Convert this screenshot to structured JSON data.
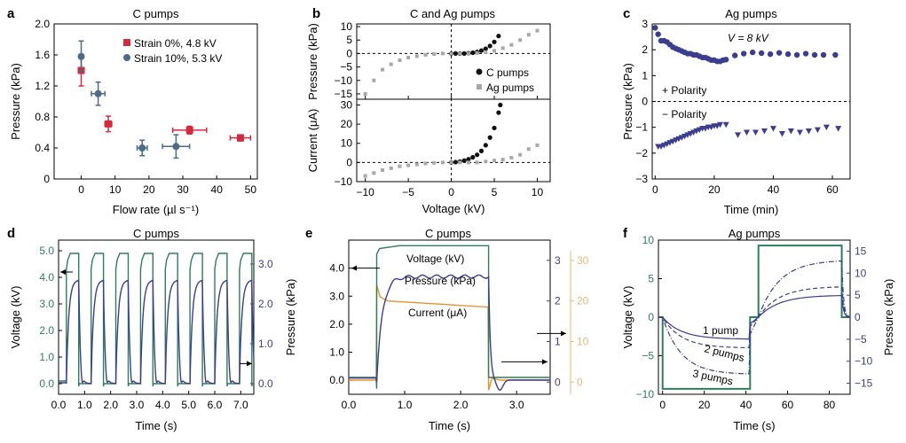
{
  "colors": {
    "red": "#d42b3c",
    "slate": "#4d6a87",
    "black": "#111111",
    "grey": "#a8a8a8",
    "navy": "#3b3d8e",
    "green": "#2f7d5c",
    "orange": "#e8912c",
    "tan": "#e3b77a"
  },
  "chart_data": [
    {
      "id": "a",
      "panel_label": "a",
      "type": "scatter",
      "title": "C pumps",
      "xlabel": "Flow rate (µl s⁻¹)",
      "ylabel": "Pressure (kPa)",
      "xlim": [
        -8,
        52
      ],
      "ylim": [
        0,
        2.0
      ],
      "xticks": [
        "0",
        "10",
        "20",
        "30",
        "40",
        "50"
      ],
      "yticks": [
        "0",
        "0.4",
        "0.8",
        "1.2",
        "1.6",
        "2.0"
      ],
      "legend_position": "top-right",
      "series": [
        {
          "name": "Strain 0%, 4.8 kV",
          "color_key": "red",
          "marker": "square",
          "points": [
            {
              "x": 0,
              "y": 1.4,
              "yerr": 0.2
            },
            {
              "x": 8,
              "y": 0.71,
              "xerr": 1,
              "yerr": 0.1
            },
            {
              "x": 32,
              "y": 0.63,
              "xerr": 5,
              "yerr": 0.05
            },
            {
              "x": 47,
              "y": 0.53,
              "xerr": 3,
              "yerr": 0.04
            }
          ]
        },
        {
          "name": "Strain 10%, 5.3 kV",
          "color_key": "slate",
          "marker": "circle",
          "points": [
            {
              "x": 0,
              "y": 1.58,
              "yerr": 0.2
            },
            {
              "x": 5,
              "y": 1.1,
              "xerr": 2,
              "yerr": 0.15
            },
            {
              "x": 18,
              "y": 0.4,
              "xerr": 1.5,
              "yerr": 0.1
            },
            {
              "x": 28,
              "y": 0.42,
              "xerr": 4,
              "yerr": 0.15
            }
          ]
        }
      ]
    },
    {
      "id": "b",
      "panel_label": "b",
      "type": "scatter",
      "title": "C and Ag pumps",
      "xlabel": "Voltage (kV)",
      "xlim": [
        -11,
        11.5
      ],
      "xticks": [
        "−10",
        "−5",
        "0",
        "5",
        "10"
      ],
      "top": {
        "ylabel": "Pressure (kPa)",
        "ylim": [
          -17,
          11
        ],
        "yticks": [
          "10",
          "5",
          "0",
          "−5",
          "−10",
          "−15"
        ]
      },
      "bottom": {
        "ylabel": "Current (μA)",
        "ylim": [
          -10,
          33
        ],
        "yticks": [
          "30",
          "20",
          "10",
          "0",
          "−10"
        ]
      },
      "legend_position": "right",
      "series": [
        {
          "name": "C pumps",
          "color_key": "black",
          "marker": "circle",
          "pressure": [
            [
              0,
              0
            ],
            [
              0.5,
              0
            ],
            [
              1,
              0
            ],
            [
              1.5,
              0
            ],
            [
              2,
              0.1
            ],
            [
              2.5,
              0.3
            ],
            [
              3,
              0.6
            ],
            [
              3.5,
              1.1
            ],
            [
              4,
              1.8
            ],
            [
              4.5,
              2.8
            ],
            [
              5,
              4.3
            ],
            [
              5.5,
              6.5
            ]
          ],
          "current": [
            [
              0,
              0
            ],
            [
              0.5,
              0.2
            ],
            [
              1,
              0.5
            ],
            [
              1.5,
              1
            ],
            [
              2,
              1.7
            ],
            [
              2.5,
              2.7
            ],
            [
              3,
              4
            ],
            [
              3.5,
              6
            ],
            [
              4,
              9
            ],
            [
              4.5,
              13
            ],
            [
              5,
              18
            ],
            [
              5.5,
              26
            ],
            [
              5.7,
              30
            ]
          ]
        },
        {
          "name": "Ag pumps",
          "color_key": "grey",
          "marker": "square",
          "pressure": [
            [
              -10,
              -15
            ],
            [
              -9,
              -10
            ],
            [
              -8,
              -6
            ],
            [
              -7,
              -4
            ],
            [
              -6,
              -2.5
            ],
            [
              -5,
              -1.5
            ],
            [
              -4,
              -1
            ],
            [
              -3,
              -0.5
            ],
            [
              -2,
              -0.2
            ],
            [
              -1,
              0
            ],
            [
              0,
              0
            ],
            [
              1,
              0
            ],
            [
              2,
              0
            ],
            [
              3,
              0.2
            ],
            [
              4,
              0.5
            ],
            [
              5,
              1
            ],
            [
              6,
              2
            ],
            [
              7,
              3.2
            ],
            [
              8,
              5
            ],
            [
              9,
              7
            ],
            [
              10,
              8.5
            ]
          ],
          "current": [
            [
              -10,
              -7
            ],
            [
              -9,
              -5.5
            ],
            [
              -8,
              -4
            ],
            [
              -7,
              -3
            ],
            [
              -6,
              -2
            ],
            [
              -5,
              -1.5
            ],
            [
              -4,
              -1
            ],
            [
              -3,
              -0.5
            ],
            [
              -2,
              -0.2
            ],
            [
              -1,
              0
            ],
            [
              0,
              0
            ],
            [
              1,
              0
            ],
            [
              2,
              0
            ],
            [
              3,
              0
            ],
            [
              4,
              0.5
            ],
            [
              5,
              1
            ],
            [
              6,
              1.5
            ],
            [
              7,
              2.5
            ],
            [
              8,
              4
            ],
            [
              9,
              7
            ],
            [
              10,
              9
            ]
          ]
        }
      ]
    },
    {
      "id": "c",
      "panel_label": "c",
      "type": "scatter",
      "title": "Ag pumps",
      "xlabel": "Time (min)",
      "ylabel": "Pressure (kPa)",
      "xlim": [
        -1,
        66
      ],
      "ylim": [
        -3,
        3
      ],
      "xticks": [
        "0",
        "20",
        "40",
        "60"
      ],
      "yticks": [
        "3",
        "2",
        "1",
        "0",
        "−1",
        "−2",
        "−3"
      ],
      "annotations": [
        "V = 8 kV",
        "+ Polarity",
        "− Polarity"
      ],
      "series": [
        {
          "name": "+ Polarity",
          "color_key": "navy",
          "marker": "circle",
          "points": [
            [
              0,
              2.85
            ],
            [
              1,
              2.6
            ],
            [
              2,
              2.35
            ],
            [
              3,
              2.35
            ],
            [
              4,
              2.3
            ],
            [
              5,
              2.2
            ],
            [
              6,
              2.1
            ],
            [
              7,
              2.05
            ],
            [
              8,
              2.0
            ],
            [
              9,
              1.95
            ],
            [
              10,
              1.9
            ],
            [
              11,
              1.85
            ],
            [
              12,
              1.85
            ],
            [
              13,
              1.8
            ],
            [
              14,
              1.8
            ],
            [
              15,
              1.75
            ],
            [
              16,
              1.7
            ],
            [
              17,
              1.7
            ],
            [
              18,
              1.65
            ],
            [
              19,
              1.6
            ],
            [
              20,
              1.6
            ],
            [
              21,
              1.55
            ],
            [
              22,
              1.55
            ],
            [
              23,
              1.6
            ],
            [
              24,
              1.62
            ],
            [
              27,
              1.78
            ],
            [
              30,
              1.85
            ],
            [
              33,
              1.9
            ],
            [
              36,
              1.87
            ],
            [
              39,
              1.83
            ],
            [
              42,
              1.88
            ],
            [
              45,
              1.83
            ],
            [
              48,
              1.8
            ],
            [
              51,
              1.85
            ],
            [
              54,
              1.8
            ],
            [
              57,
              1.8
            ],
            [
              61,
              1.8
            ]
          ]
        },
        {
          "name": "− Polarity",
          "color_key": "navy",
          "marker": "triangle-down",
          "points": [
            [
              1,
              -1.75
            ],
            [
              2,
              -1.75
            ],
            [
              3,
              -1.7
            ],
            [
              4,
              -1.65
            ],
            [
              5,
              -1.6
            ],
            [
              6,
              -1.55
            ],
            [
              7,
              -1.5
            ],
            [
              8,
              -1.45
            ],
            [
              9,
              -1.4
            ],
            [
              10,
              -1.35
            ],
            [
              11,
              -1.3
            ],
            [
              12,
              -1.25
            ],
            [
              13,
              -1.2
            ],
            [
              14,
              -1.15
            ],
            [
              15,
              -1.1
            ],
            [
              16,
              -1.05
            ],
            [
              17,
              -1.05
            ],
            [
              18,
              -1.0
            ],
            [
              19,
              -1.0
            ],
            [
              20,
              -0.95
            ],
            [
              21,
              -0.95
            ],
            [
              22,
              -0.9
            ],
            [
              24,
              -0.9
            ],
            [
              28,
              -1.3
            ],
            [
              31,
              -1.2
            ],
            [
              34,
              -1.2
            ],
            [
              37,
              -1.15
            ],
            [
              40,
              -1.05
            ],
            [
              43,
              -1.25
            ],
            [
              46,
              -1.15
            ],
            [
              49,
              -1.2
            ],
            [
              52,
              -1.15
            ],
            [
              55,
              -1.1
            ],
            [
              58,
              -1.0
            ],
            [
              62,
              -1.05
            ]
          ]
        }
      ]
    },
    {
      "id": "d",
      "panel_label": "d",
      "type": "line",
      "title": "C pumps",
      "xlabel": "Time (s)",
      "ylabel": "Voltage (kV)",
      "y2label": "Pressure (kPa)",
      "xlim": [
        0,
        7.5
      ],
      "ylim": [
        -0.4,
        5.4
      ],
      "y2lim": [
        -0.27,
        3.6
      ],
      "xticks": [
        "0.0",
        "1.0",
        "2.0",
        "3.0",
        "4.0",
        "5.0",
        "6.0",
        "7.0"
      ],
      "yticks": [
        "0.0",
        "1.0",
        "2.0",
        "3.0",
        "4.0",
        "5.0"
      ],
      "y2ticks": [
        "0.0",
        "1.0",
        "2.0",
        "3.0"
      ],
      "series": [
        {
          "name": "Voltage",
          "axis": "left",
          "color_key": "green",
          "description": "square pulses 0→~4.9 kV, period 0.95 s, on from 0.3 s",
          "on_level": 4.9,
          "period": 0.95,
          "duty": 0.5
        },
        {
          "name": "Pressure",
          "axis": "right",
          "color_key": "navy",
          "description": "rises to ~2.6 kPa during each pulse, relaxes to ~0 between",
          "peak": 2.6
        }
      ]
    },
    {
      "id": "e",
      "panel_label": "e",
      "type": "line",
      "title": "C pumps",
      "xlabel": "Time (s)",
      "ylabel": "",
      "y2label": "",
      "y3label": "",
      "xlim": [
        0,
        3.6
      ],
      "ylim": [
        -0.5,
        5
      ],
      "y2lim": [
        -0.3,
        3.5
      ],
      "y3lim": [
        -3,
        35
      ],
      "xticks": [
        "0.0",
        "1.0",
        "2.0",
        "3.0"
      ],
      "yticks": [
        "0.0",
        "1.0",
        "2.0",
        "3.0",
        "4.0"
      ],
      "y2ticks": [
        "0",
        "1",
        "2",
        "3"
      ],
      "y3ticks": [
        "0",
        "10",
        "20",
        "30"
      ],
      "annotations": [
        "Voltage (kV)",
        "Pressure (kPa)",
        "Current (μA)"
      ],
      "series": [
        {
          "name": "Voltage (kV)",
          "axis": "left",
          "color_key": "green",
          "on_level": 4.8,
          "t_on": 0.5,
          "t_off": 2.5
        },
        {
          "name": "Pressure (kPa)",
          "axis": "middle",
          "color_key": "navy",
          "plateau": 2.6,
          "t_on": 0.5,
          "t_off": 2.5
        },
        {
          "name": "Current (μA)",
          "axis": "right",
          "color_key": "orange",
          "start": 20,
          "end": 18.5,
          "t_on": 0.5,
          "t_off": 2.5
        }
      ]
    },
    {
      "id": "f",
      "panel_label": "f",
      "type": "line",
      "title": "Ag pumps",
      "xlabel": "Time (s)",
      "ylabel": "Voltage (kV)",
      "y2label": "Pressure (kPa)",
      "xlim": [
        -2,
        90
      ],
      "ylim": [
        -10,
        10
      ],
      "y2lim": [
        -17.5,
        17.5
      ],
      "xticks": [
        "0",
        "20",
        "40",
        "60",
        "80"
      ],
      "yticks": [
        "10",
        "5",
        "0",
        "−5",
        "−10"
      ],
      "y2ticks": [
        "15",
        "10",
        "5",
        "0",
        "−5",
        "−10",
        "−15"
      ],
      "annotations": [
        "1 pump",
        "2 pumps",
        "3 pumps"
      ],
      "series": [
        {
          "name": "Voltage",
          "axis": "left",
          "color_key": "green",
          "description": "−9.3 kV from 0 to 42 s, +9.3 kV from 46 to 86 s"
        },
        {
          "name": "1 pump",
          "axis": "right",
          "color_key": "navy",
          "dash": "solid",
          "amplitude": 5
        },
        {
          "name": "2 pumps",
          "axis": "right",
          "color_key": "navy",
          "dash": "dashed",
          "amplitude": 7
        },
        {
          "name": "3 pumps",
          "axis": "right",
          "color_key": "navy",
          "dash": "dashdot",
          "amplitude": 13
        }
      ]
    }
  ]
}
